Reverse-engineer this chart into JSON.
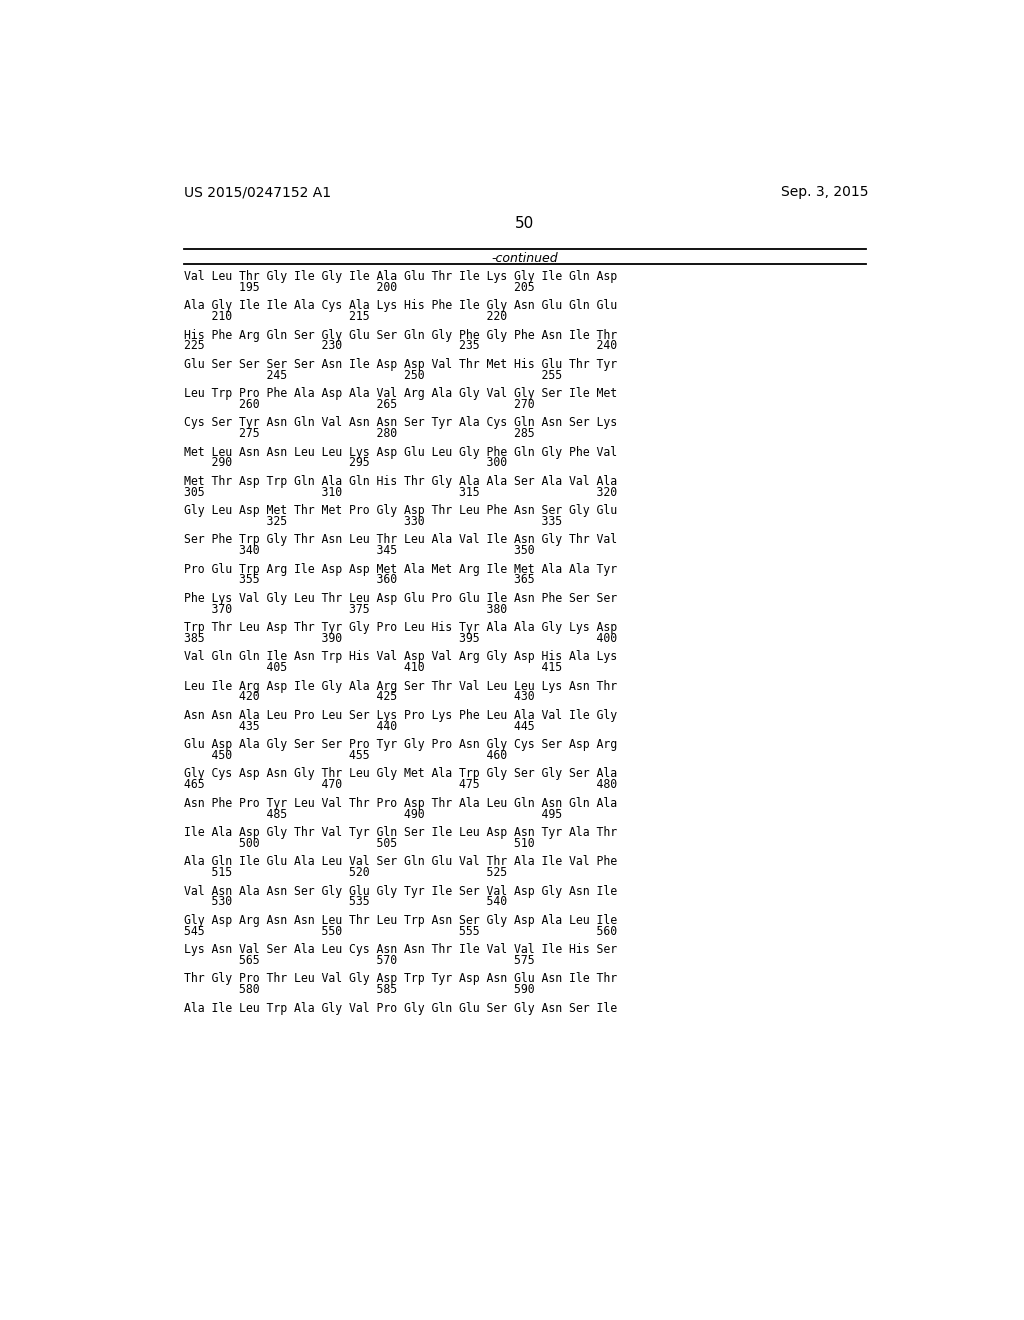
{
  "header_left": "US 2015/0247152 A1",
  "header_right": "Sep. 3, 2015",
  "page_number": "50",
  "continued_text": "-continued",
  "background_color": "#ffffff",
  "text_color": "#000000",
  "seq_lines": [
    [
      "Val Leu Thr Gly Ile Gly Ile Ala Glu Thr Ile Lys Gly Ile Gln Asp",
      "        195                 200                 205"
    ],
    [
      "Ala Gly Ile Ile Ala Cys Ala Lys His Phe Ile Gly Asn Glu Gln Glu",
      "    210                 215                 220"
    ],
    [
      "His Phe Arg Gln Ser Gly Glu Ser Gln Gly Phe Gly Phe Asn Ile Thr",
      "225                 230                 235                 240"
    ],
    [
      "Glu Ser Ser Ser Ser Asn Ile Asp Asp Val Thr Met His Glu Thr Tyr",
      "            245                 250                 255"
    ],
    [
      "Leu Trp Pro Phe Ala Asp Ala Val Arg Ala Gly Val Gly Ser Ile Met",
      "        260                 265                 270"
    ],
    [
      "Cys Ser Tyr Asn Gln Val Asn Asn Ser Tyr Ala Cys Gln Asn Ser Lys",
      "        275                 280                 285"
    ],
    [
      "Met Leu Asn Asn Leu Leu Lys Asp Glu Leu Gly Phe Gln Gly Phe Val",
      "    290                 295                 300"
    ],
    [
      "Met Thr Asp Trp Gln Ala Gln His Thr Gly Ala Ala Ser Ala Val Ala",
      "305                 310                 315                 320"
    ],
    [
      "Gly Leu Asp Met Thr Met Pro Gly Asp Thr Leu Phe Asn Ser Gly Glu",
      "            325                 330                 335"
    ],
    [
      "Ser Phe Trp Gly Thr Asn Leu Thr Leu Ala Val Ile Asn Gly Thr Val",
      "        340                 345                 350"
    ],
    [
      "Pro Glu Trp Arg Ile Asp Asp Met Ala Met Arg Ile Met Ala Ala Tyr",
      "        355                 360                 365"
    ],
    [
      "Phe Lys Val Gly Leu Thr Leu Asp Glu Pro Glu Ile Asn Phe Ser Ser",
      "    370                 375                 380"
    ],
    [
      "Trp Thr Leu Asp Thr Tyr Gly Pro Leu His Tyr Ala Ala Gly Lys Asp",
      "385                 390                 395                 400"
    ],
    [
      "Val Gln Gln Ile Asn Trp His Val Asp Val Arg Gly Asp His Ala Lys",
      "            405                 410                 415"
    ],
    [
      "Leu Ile Arg Asp Ile Gly Ala Arg Ser Thr Val Leu Leu Lys Asn Thr",
      "        420                 425                 430"
    ],
    [
      "Asn Asn Ala Leu Pro Leu Ser Lys Pro Lys Phe Leu Ala Val Ile Gly",
      "        435                 440                 445"
    ],
    [
      "Glu Asp Ala Gly Ser Ser Pro Tyr Gly Pro Asn Gly Cys Ser Asp Arg",
      "    450                 455                 460"
    ],
    [
      "Gly Cys Asp Asn Gly Thr Leu Gly Met Ala Trp Gly Ser Gly Ser Ala",
      "465                 470                 475                 480"
    ],
    [
      "Asn Phe Pro Tyr Leu Val Thr Pro Asp Thr Ala Leu Gln Asn Gln Ala",
      "            485                 490                 495"
    ],
    [
      "Ile Ala Asp Gly Thr Val Tyr Gln Ser Ile Leu Asp Asn Tyr Ala Thr",
      "        500                 505                 510"
    ],
    [
      "Ala Gln Ile Glu Ala Leu Val Ser Gln Glu Val Thr Ala Ile Val Phe",
      "    515                 520                 525"
    ],
    [
      "Val Asn Ala Asn Ser Gly Glu Gly Tyr Ile Ser Val Asp Gly Asn Ile",
      "    530                 535                 540"
    ],
    [
      "Gly Asp Arg Asn Asn Leu Thr Leu Trp Asn Ser Gly Asp Ala Leu Ile",
      "545                 550                 555                 560"
    ],
    [
      "Lys Asn Val Ser Ala Leu Cys Asn Asn Thr Ile Val Val Ile His Ser",
      "        565                 570                 575"
    ],
    [
      "Thr Gly Pro Thr Leu Val Gly Asp Trp Tyr Asp Asn Glu Asn Ile Thr",
      "        580                 585                 590"
    ],
    [
      "Ala Ile Leu Trp Ala Gly Val Pro Gly Gln Glu Ser Gly Asn Ser Ile",
      ""
    ]
  ]
}
